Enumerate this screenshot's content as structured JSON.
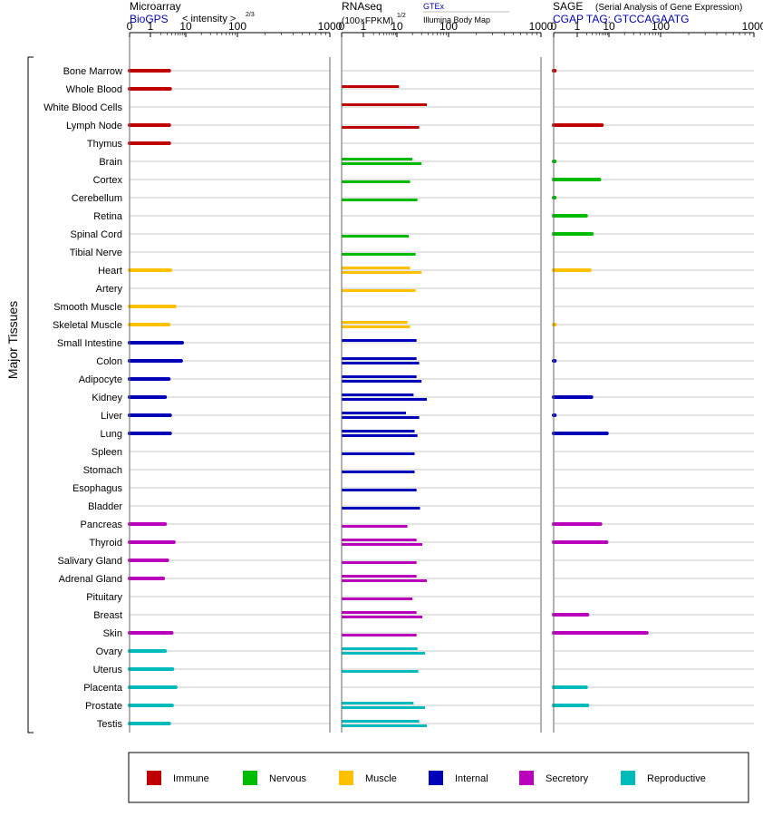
{
  "panels": {
    "microarray": {
      "title": "Microarray",
      "source": "BioGPS",
      "unit_prefix": "< intensity >",
      "unit_exp": "2/3"
    },
    "rnaseq": {
      "title": "RNAseq",
      "unit_prefix": "(100×FPKM)",
      "unit_exp": "1/2",
      "legend_top": "GTEx",
      "legend_bottom": "Illumina Body Map"
    },
    "sage": {
      "title": "SAGE",
      "subtitle": "(Serial Analysis of Gene Expression)",
      "tag": "CGAP TAG: GTCCAGAATG"
    }
  },
  "axis_ticks": [
    "0",
    "1",
    "10",
    "100",
    "1000"
  ],
  "y_axis_label": "Major Tissues",
  "legend": [
    {
      "label": "Immune",
      "color": "#c00000"
    },
    {
      "label": "Nervous",
      "color": "#00bb00"
    },
    {
      "label": "Muscle",
      "color": "#ffc000"
    },
    {
      "label": "Internal",
      "color": "#0000bb"
    },
    {
      "label": "Secretory",
      "color": "#bb00bb"
    },
    {
      "label": "Reproductive",
      "color": "#00bbbb"
    }
  ],
  "chart_data": {
    "type": "bar",
    "orientation": "horizontal",
    "x_scale": "log",
    "xlim": [
      0,
      1000
    ],
    "categories": [
      "Bone Marrow",
      "Whole Blood",
      "White Blood Cells",
      "Lymph Node",
      "Thymus",
      "Brain",
      "Cortex",
      "Cerebellum",
      "Retina",
      "Spinal Cord",
      "Tibial Nerve",
      "Heart",
      "Artery",
      "Smooth Muscle",
      "Skeletal Muscle",
      "Small Intestine",
      "Colon",
      "Adipocyte",
      "Kidney",
      "Liver",
      "Lung",
      "Spleen",
      "Stomach",
      "Esophagus",
      "Bladder",
      "Pancreas",
      "Thyroid",
      "Salivary Gland",
      "Adrenal Gland",
      "Pituitary",
      "Breast",
      "Skin",
      "Ovary",
      "Uterus",
      "Placenta",
      "Prostate",
      "Testis"
    ],
    "groups": [
      "Immune",
      "Immune",
      "Immune",
      "Immune",
      "Immune",
      "Nervous",
      "Nervous",
      "Nervous",
      "Nervous",
      "Nervous",
      "Nervous",
      "Muscle",
      "Muscle",
      "Muscle",
      "Muscle",
      "Internal",
      "Internal",
      "Internal",
      "Internal",
      "Internal",
      "Internal",
      "Internal",
      "Internal",
      "Internal",
      "Internal",
      "Secretory",
      "Secretory",
      "Secretory",
      "Secretory",
      "Secretory",
      "Secretory",
      "Secretory",
      "Reproductive",
      "Reproductive",
      "Reproductive",
      "Reproductive",
      "Reproductive"
    ],
    "series": [
      {
        "name": "Microarray",
        "values": [
          3.4,
          3.6,
          null,
          3.4,
          3.4,
          null,
          null,
          null,
          null,
          null,
          null,
          3.7,
          null,
          4.9,
          3.3,
          7.9,
          7.4,
          3.3,
          2.6,
          3.6,
          3.6,
          null,
          null,
          null,
          null,
          2.6,
          4.6,
          3.0,
          2.3,
          null,
          null,
          4.0,
          2.6,
          4.2,
          5.2,
          4.1,
          3.4
        ]
      },
      {
        "name": "GTEx",
        "values": [
          null,
          11,
          38,
          null,
          null,
          20,
          null,
          null,
          null,
          null,
          null,
          18,
          null,
          null,
          16,
          24,
          24,
          24,
          21,
          15,
          22,
          null,
          null,
          null,
          null,
          null,
          24,
          null,
          24,
          null,
          24,
          null,
          25,
          null,
          null,
          21,
          27
        ]
      },
      {
        "name": "Illumina Body Map",
        "values": [
          null,
          null,
          null,
          27,
          null,
          30,
          18,
          25,
          null,
          17,
          23,
          30,
          23,
          null,
          18,
          null,
          27,
          30,
          38,
          27,
          25,
          22,
          22,
          24,
          28,
          16,
          31,
          24,
          38,
          20,
          31,
          24,
          35,
          26,
          null,
          35,
          38
        ]
      },
      {
        "name": "SAGE",
        "values": [
          0.05,
          null,
          null,
          6.0,
          null,
          0.05,
          5.0,
          0.05,
          1.9,
          2.9,
          null,
          2.5,
          null,
          null,
          0.05,
          null,
          0.05,
          null,
          2.8,
          0.05,
          8.6,
          null,
          null,
          null,
          null,
          5.4,
          8.4,
          null,
          null,
          null,
          2.1,
          54,
          null,
          null,
          1.9,
          2.1,
          null
        ]
      }
    ]
  }
}
